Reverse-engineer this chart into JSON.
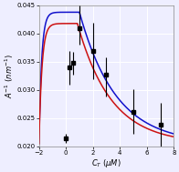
{
  "xlabel": "C_T (μM)",
  "ylabel": "A⁻¹ (nm⁻¹)",
  "xlim": [
    -2,
    8
  ],
  "ylim": [
    0.02,
    0.045
  ],
  "xticks": [
    -2,
    0,
    2,
    4,
    6,
    8
  ],
  "yticks": [
    0.02,
    0.025,
    0.03,
    0.035,
    0.04,
    0.045
  ],
  "data_x": [
    0.0,
    0.25,
    0.5,
    1.0,
    2.0,
    3.0,
    5.0,
    7.0
  ],
  "data_y": [
    0.0215,
    0.034,
    0.0348,
    0.041,
    0.037,
    0.0328,
    0.0262,
    0.0238
  ],
  "data_yerr_lo": [
    0.0008,
    0.003,
    0.002,
    0.003,
    0.005,
    0.004,
    0.004,
    0.004
  ],
  "data_yerr_hi": [
    0.0008,
    0.003,
    0.002,
    0.004,
    0.005,
    0.003,
    0.004,
    0.004
  ],
  "background_color": "#eeeeff",
  "grid_color": "#ffffff",
  "curve_blue_color": "#1111cc",
  "curve_red_color": "#cc1111"
}
